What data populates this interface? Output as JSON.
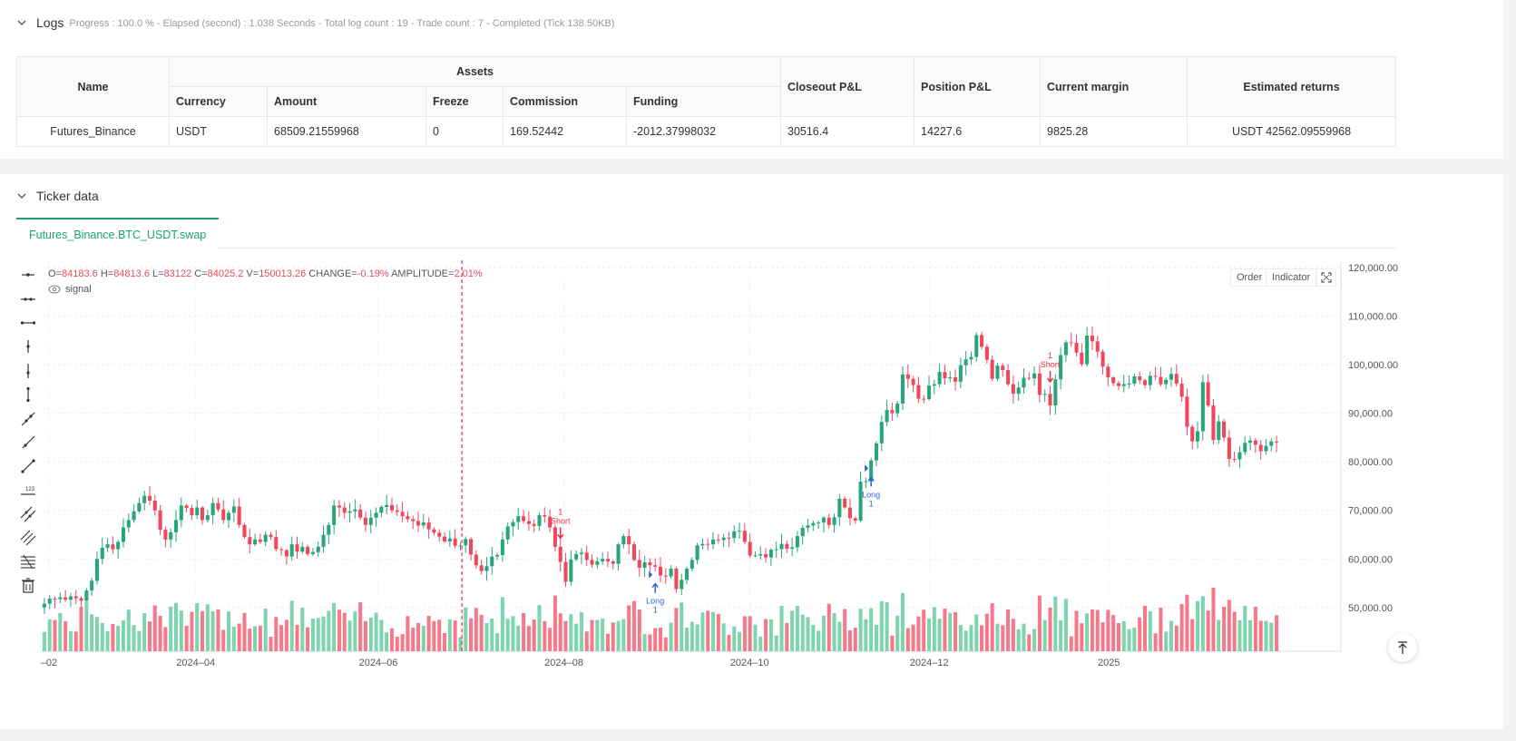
{
  "logs": {
    "title": "Logs",
    "meta": "Progress : 100.0 % - Elapsed (second) : 1.038  Seconds - Total log count : 19 - Trade count : 7 - Completed (Tick 138.50KB)",
    "table": {
      "headers": {
        "name": "Name",
        "assets": "Assets",
        "currency": "Currency",
        "amount": "Amount",
        "freeze": "Freeze",
        "commission": "Commission",
        "funding": "Funding",
        "closeout": "Closeout P&L",
        "position": "Position P&L",
        "margin": "Current margin",
        "returns": "Estimated returns"
      },
      "row": {
        "name": "Futures_Binance",
        "currency": "USDT",
        "amount": "68509.21559968",
        "freeze": "0",
        "commission": "169.52442",
        "funding": "-2012.37998032",
        "closeout": "30516.4",
        "position": "14227.6",
        "margin": "9825.28",
        "returns": "USDT 42562.09559968"
      }
    }
  },
  "ticker": {
    "title": "Ticker data",
    "tab": "Futures_Binance.BTC_USDT.swap",
    "buttons": {
      "order": "Order",
      "indicator": "Indicator"
    },
    "ohlc": {
      "o_label": "O=",
      "o": "84183.6",
      "h_label": "H=",
      "h": "84813.6",
      "l_label": "L=",
      "l": "83122",
      "c_label": "C=",
      "c": "84025.2",
      "v_label": "V=",
      "v": "150013.26",
      "change_label": "CHANGE=",
      "change": "-0.19%",
      "amp_label": "AMPLITUDE=",
      "amp": "2.01%"
    },
    "signal_label": "signal"
  },
  "colors": {
    "up": "#26a67a",
    "down": "#f0475d",
    "up_vol": "#7fd4b0",
    "down_vol": "#f5798b",
    "long": "#2e62d9",
    "short": "#e8303f",
    "accent": "#1aa177"
  },
  "chart_data": {
    "type": "candlestick",
    "x_tick_labels": [
      "–02",
      "2024–04",
      "2024–06",
      "2024–08",
      "2024–10",
      "2024–12",
      "2025"
    ],
    "y_tick_labels": [
      "120,000.00",
      "110,000.00",
      "100,000.00",
      "90,000.00",
      "80,000.00",
      "70,000.00",
      "60,000.00",
      "50,000.00"
    ],
    "ylim": [
      41000,
      121500
    ],
    "close_series": [
      50800,
      51800,
      51700,
      52100,
      51600,
      52300,
      51900,
      51400,
      53500,
      55500,
      60000,
      62300,
      63000,
      62000,
      63500,
      66500,
      68000,
      69800,
      71500,
      73000,
      72000,
      70000,
      66000,
      64000,
      65500,
      68000,
      71000,
      70500,
      69000,
      70600,
      68000,
      69000,
      71500,
      70200,
      68000,
      69500,
      70800,
      67000,
      64500,
      63000,
      64000,
      63500,
      65000,
      64500,
      62000,
      61800,
      60500,
      63000,
      61500,
      62500,
      61000,
      61400,
      62500,
      65000,
      67000,
      71000,
      70600,
      69500,
      69800,
      70200,
      68500,
      67000,
      68500,
      69500,
      70700,
      71100,
      70000,
      69700,
      68800,
      68200,
      67800,
      66900,
      67500,
      66100,
      65400,
      64600,
      63600,
      64200,
      62700,
      62800,
      64100,
      60900,
      58700,
      57500,
      58500,
      60500,
      60800,
      64000,
      66700,
      67600,
      68800,
      67800,
      67200,
      66800,
      69000,
      68700,
      66500,
      62500,
      59400,
      55300,
      59900,
      61000,
      61300,
      59800,
      58800,
      59500,
      60000,
      59500,
      59000,
      63000,
      64700,
      63000,
      59800,
      58200,
      59300,
      58700,
      58400,
      56600,
      56400,
      58000,
      53800,
      55700,
      58000,
      59800,
      62800,
      63100,
      63000,
      64000,
      63900,
      64400,
      64300,
      65700,
      65800,
      63500,
      60700,
      60700,
      61000,
      60300,
      61900,
      62000,
      63100,
      62100,
      62400,
      64700,
      66400,
      66900,
      67400,
      67500,
      68500,
      67000,
      68600,
      72400,
      70600,
      68400,
      67900,
      75900,
      76000,
      80300,
      83800,
      88200,
      90700,
      90000,
      92000,
      98000,
      97100,
      95800,
      93000,
      92900,
      95700,
      96000,
      98500,
      97200,
      97400,
      96500,
      99900,
      101100,
      101600,
      106100,
      103700,
      101000,
      97100,
      99800,
      98900,
      96000,
      94000,
      95300,
      97300,
      97200,
      98200,
      93800,
      94000,
      91600,
      97000,
      102000,
      104600,
      104500,
      102500,
      100100,
      106000,
      104800,
      102700,
      99600,
      97400,
      96200,
      95600,
      96000,
      96100,
      97600,
      96800,
      95800,
      97700,
      97500,
      96000,
      96900,
      98100,
      96100,
      93400,
      87200,
      84200,
      86300,
      96400,
      91600,
      84500,
      88300,
      85000,
      80600,
      80500,
      82000,
      83900,
      84400,
      83500,
      82200,
      83300,
      84200,
      84000
    ],
    "signals": [
      {
        "type": "Short",
        "label": "Short",
        "count": "1",
        "index": 98
      },
      {
        "type": "Long",
        "label": "Long",
        "count": "1",
        "index": 116
      },
      {
        "type": "Long",
        "label": "Long",
        "count": "1",
        "index": 157
      },
      {
        "type": "Short",
        "label": "Short",
        "count": "1",
        "index": 191
      }
    ],
    "cursor_index": 79,
    "grid": true
  }
}
